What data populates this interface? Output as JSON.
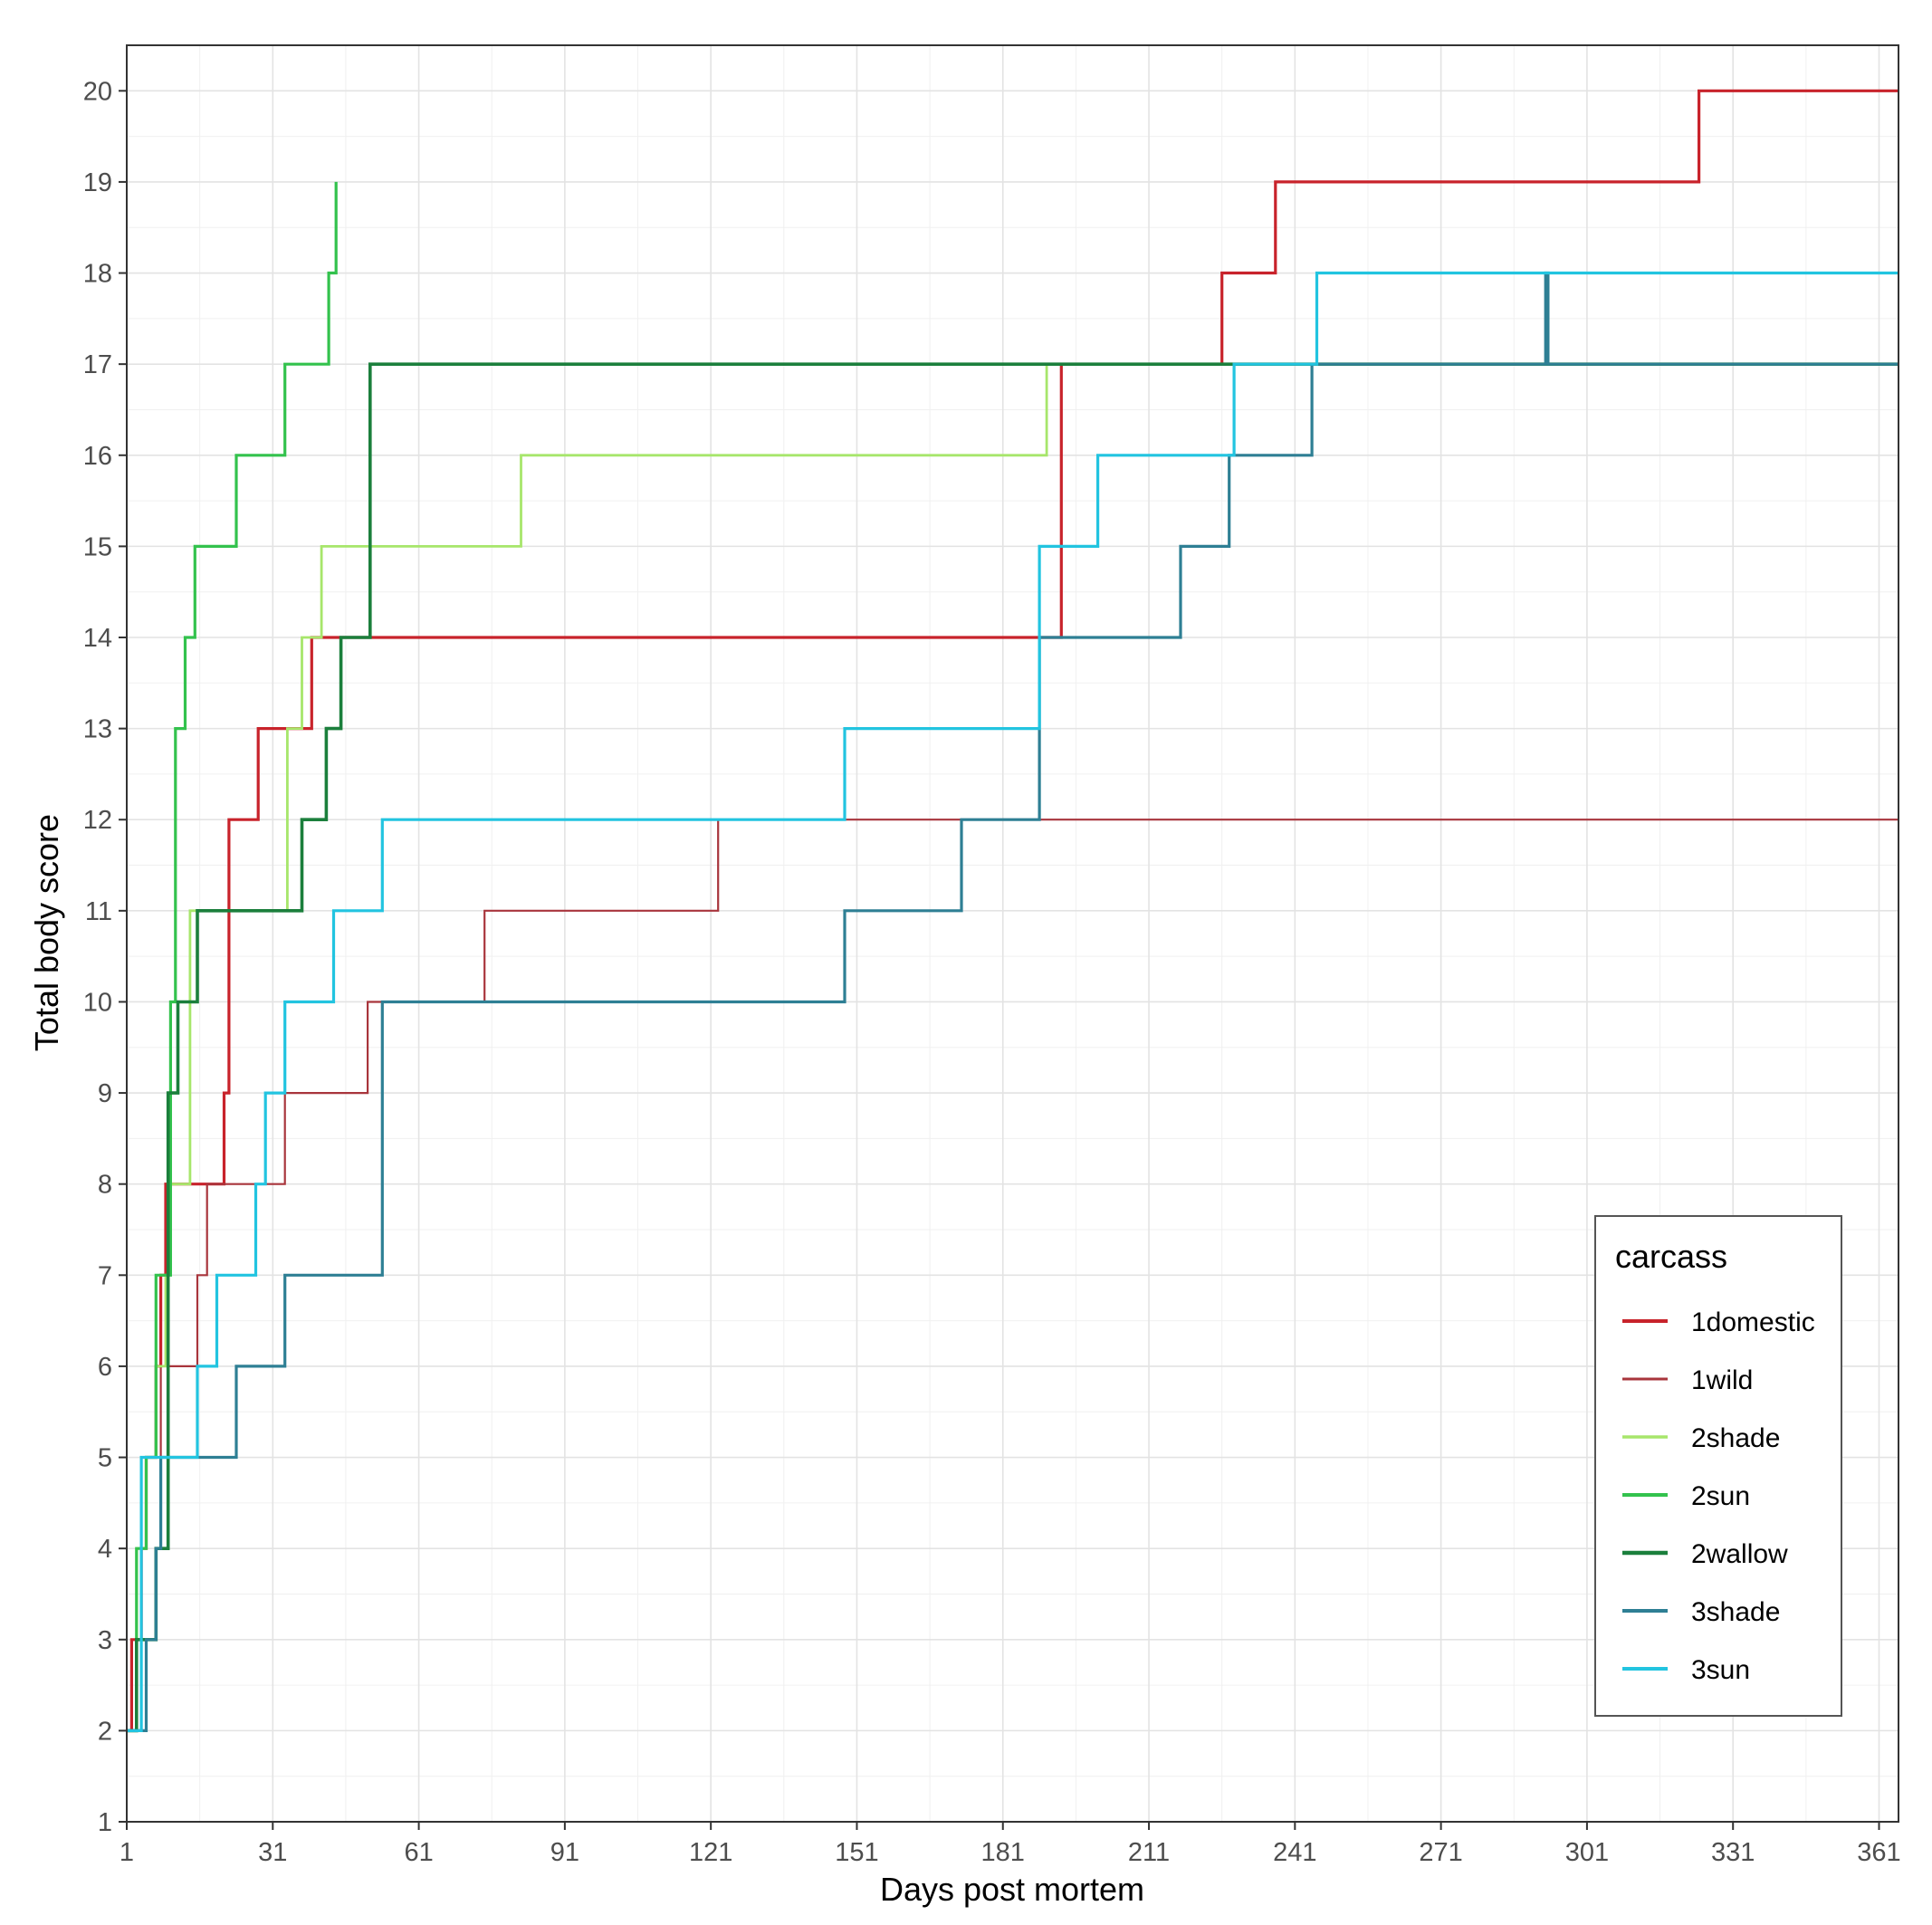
{
  "chart_data": {
    "type": "line",
    "step": true,
    "title": "",
    "xlabel": "Days post mortem",
    "ylabel": "Total body score",
    "xlim": [
      1,
      365
    ],
    "ylim": [
      1,
      20.5
    ],
    "xticks": [
      1,
      31,
      61,
      91,
      121,
      151,
      181,
      211,
      241,
      271,
      301,
      331,
      361
    ],
    "yticks": [
      1,
      2,
      3,
      4,
      5,
      6,
      7,
      8,
      9,
      10,
      11,
      12,
      13,
      14,
      15,
      16,
      17,
      18,
      19,
      20
    ],
    "grid": true,
    "legend": {
      "title": "carcass",
      "position": "right-bottom"
    },
    "series": [
      {
        "name": "1domestic",
        "color": "#c8232b",
        "width": 3.2,
        "points": [
          [
            1,
            2
          ],
          [
            2,
            3
          ],
          [
            4,
            4
          ],
          [
            5,
            5
          ],
          [
            7,
            6
          ],
          [
            8,
            7
          ],
          [
            9,
            8
          ],
          [
            12,
            8
          ],
          [
            15,
            8
          ],
          [
            20,
            8
          ],
          [
            21,
            9
          ],
          [
            22,
            12
          ],
          [
            28,
            13
          ],
          [
            33,
            13
          ],
          [
            39,
            14
          ],
          [
            52,
            14
          ],
          [
            190,
            14
          ],
          [
            193,
            17
          ],
          [
            225,
            17
          ],
          [
            226,
            18
          ],
          [
            236,
            18
          ],
          [
            237,
            19
          ],
          [
            323,
            19
          ],
          [
            324,
            20
          ],
          [
            365,
            20
          ]
        ]
      },
      {
        "name": "1wild",
        "color": "#a8353c",
        "width": 2.2,
        "points": [
          [
            1,
            2
          ],
          [
            3,
            4
          ],
          [
            5,
            5
          ],
          [
            8,
            6
          ],
          [
            9,
            6
          ],
          [
            15,
            6
          ],
          [
            15.5,
            7
          ],
          [
            17,
            7
          ],
          [
            17.5,
            8
          ],
          [
            33,
            8
          ],
          [
            33.5,
            9
          ],
          [
            50,
            9
          ],
          [
            50.5,
            10
          ],
          [
            74,
            10
          ],
          [
            74.5,
            11
          ],
          [
            122,
            11
          ],
          [
            122.5,
            12
          ],
          [
            190,
            12
          ],
          [
            365,
            12
          ]
        ]
      },
      {
        "name": "2shade",
        "color": "#a7e66b",
        "width": 2.8,
        "points": [
          [
            1,
            2
          ],
          [
            3,
            4
          ],
          [
            5,
            5
          ],
          [
            7,
            6
          ],
          [
            9,
            7
          ],
          [
            10,
            8
          ],
          [
            13,
            8
          ],
          [
            14,
            11
          ],
          [
            33,
            11
          ],
          [
            34,
            13
          ],
          [
            36,
            13
          ],
          [
            37,
            14
          ],
          [
            40,
            14
          ],
          [
            41,
            15
          ],
          [
            81,
            15
          ],
          [
            82,
            16
          ],
          [
            189,
            16
          ],
          [
            190,
            17
          ],
          [
            365,
            17
          ]
        ]
      },
      {
        "name": "2sun",
        "color": "#33c24d",
        "width": 3.2,
        "points": [
          [
            1,
            2
          ],
          [
            3,
            4
          ],
          [
            5,
            5
          ],
          [
            7,
            7
          ],
          [
            10,
            10
          ],
          [
            11,
            13
          ],
          [
            13,
            14
          ],
          [
            15,
            15
          ],
          [
            23,
            15
          ],
          [
            23.5,
            16
          ],
          [
            33,
            16
          ],
          [
            33.5,
            17
          ],
          [
            42,
            17
          ],
          [
            42.5,
            18
          ],
          [
            43.5,
            18
          ],
          [
            44,
            19
          ]
        ]
      },
      {
        "name": "2wallow",
        "color": "#1b7f3c",
        "width": 3.6,
        "points": [
          [
            1,
            2
          ],
          [
            3,
            3
          ],
          [
            6,
            3
          ],
          [
            7,
            4
          ],
          [
            9,
            4
          ],
          [
            9.5,
            9
          ],
          [
            11,
            9
          ],
          [
            11.5,
            10
          ],
          [
            15,
            10
          ],
          [
            15.5,
            11
          ],
          [
            36,
            11
          ],
          [
            37,
            12
          ],
          [
            41,
            12
          ],
          [
            42,
            13
          ],
          [
            44,
            13
          ],
          [
            45,
            14
          ],
          [
            50,
            14
          ],
          [
            51,
            17
          ],
          [
            365,
            17
          ]
        ]
      },
      {
        "name": "3shade",
        "color": "#2e7f94",
        "width": 3.2,
        "points": [
          [
            1,
            2
          ],
          [
            4,
            2
          ],
          [
            5,
            3
          ],
          [
            7,
            4
          ],
          [
            8,
            5
          ],
          [
            23,
            5
          ],
          [
            23.5,
            6
          ],
          [
            33,
            6
          ],
          [
            33.5,
            7
          ],
          [
            53,
            7
          ],
          [
            53.5,
            10
          ],
          [
            148,
            10
          ],
          [
            148.5,
            11
          ],
          [
            172,
            11
          ],
          [
            172.5,
            12
          ],
          [
            188,
            12
          ],
          [
            188.5,
            14
          ],
          [
            217,
            14
          ],
          [
            217.5,
            15
          ],
          [
            227,
            15
          ],
          [
            227.5,
            16
          ],
          [
            244,
            16
          ],
          [
            244.5,
            17
          ],
          [
            292,
            17
          ],
          [
            292.5,
            18
          ],
          [
            293,
            17
          ],
          [
            365,
            17
          ]
        ]
      },
      {
        "name": "3sun",
        "color": "#22c4e0",
        "width": 3.2,
        "points": [
          [
            1,
            2
          ],
          [
            3,
            2
          ],
          [
            4,
            5
          ],
          [
            15,
            5
          ],
          [
            15.5,
            6
          ],
          [
            19,
            6
          ],
          [
            19.5,
            7
          ],
          [
            27,
            7
          ],
          [
            27.5,
            8
          ],
          [
            29,
            8
          ],
          [
            29.5,
            9
          ],
          [
            33,
            9
          ],
          [
            33.5,
            10
          ],
          [
            43,
            10
          ],
          [
            43.5,
            11
          ],
          [
            53,
            11
          ],
          [
            53.5,
            12
          ],
          [
            148,
            12
          ],
          [
            148.5,
            13
          ],
          [
            188,
            13
          ],
          [
            188.5,
            15
          ],
          [
            200,
            15
          ],
          [
            200.5,
            16
          ],
          [
            228,
            16
          ],
          [
            228.5,
            17
          ],
          [
            245,
            17
          ],
          [
            245.5,
            18
          ],
          [
            365,
            18
          ]
        ]
      }
    ]
  }
}
